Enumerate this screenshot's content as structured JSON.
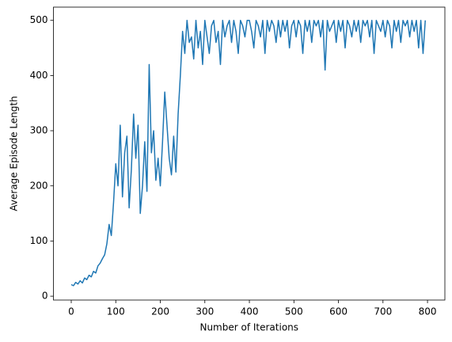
{
  "chart_data": {
    "type": "line",
    "xlabel": "Number of Iterations",
    "ylabel": "Average Episode Length",
    "x": [
      0,
      5,
      10,
      15,
      20,
      25,
      30,
      35,
      40,
      45,
      50,
      55,
      60,
      65,
      70,
      75,
      80,
      85,
      90,
      95,
      100,
      105,
      110,
      115,
      120,
      125,
      130,
      135,
      140,
      145,
      150,
      155,
      160,
      165,
      170,
      175,
      180,
      185,
      190,
      195,
      200,
      205,
      210,
      215,
      220,
      225,
      230,
      235,
      240,
      245,
      250,
      255,
      260,
      265,
      270,
      275,
      280,
      285,
      290,
      295,
      300,
      305,
      310,
      315,
      320,
      325,
      330,
      335,
      340,
      345,
      350,
      355,
      360,
      365,
      370,
      375,
      380,
      385,
      390,
      395,
      400,
      405,
      410,
      415,
      420,
      425,
      430,
      435,
      440,
      445,
      450,
      455,
      460,
      465,
      470,
      475,
      480,
      485,
      490,
      495,
      500,
      505,
      510,
      515,
      520,
      525,
      530,
      535,
      540,
      545,
      550,
      555,
      560,
      565,
      570,
      575,
      580,
      585,
      590,
      595,
      600,
      605,
      610,
      615,
      620,
      625,
      630,
      635,
      640,
      645,
      650,
      655,
      660,
      665,
      670,
      675,
      680,
      685,
      690,
      695,
      700,
      705,
      710,
      715,
      720,
      725,
      730,
      735,
      740,
      745,
      750,
      755,
      760,
      765,
      770,
      775,
      780,
      785,
      790,
      795
    ],
    "series": [
      {
        "name": "Average Episode Length",
        "color": "#1f77b4",
        "values": [
          21,
          19,
          25,
          22,
          28,
          24,
          33,
          30,
          38,
          35,
          45,
          42,
          55,
          60,
          68,
          75,
          95,
          130,
          110,
          170,
          240,
          200,
          310,
          180,
          260,
          290,
          160,
          230,
          330,
          250,
          310,
          150,
          200,
          280,
          190,
          420,
          260,
          300,
          210,
          250,
          200,
          280,
          370,
          310,
          250,
          220,
          290,
          225,
          330,
          400,
          480,
          440,
          500,
          460,
          470,
          430,
          500,
          450,
          480,
          420,
          500,
          470,
          440,
          490,
          500,
          460,
          480,
          420,
          500,
          470,
          490,
          500,
          460,
          500,
          480,
          440,
          500,
          490,
          470,
          500,
          500,
          480,
          450,
          500,
          490,
          470,
          500,
          440,
          500,
          480,
          500,
          490,
          460,
          500,
          470,
          500,
          480,
          500,
          450,
          490,
          500,
          470,
          500,
          490,
          440,
          500,
          480,
          500,
          460,
          500,
          490,
          500,
          470,
          500,
          410,
          500,
          480,
          490,
          500,
          460,
          500,
          480,
          500,
          450,
          500,
          490,
          470,
          500,
          480,
          500,
          460,
          500,
          490,
          500,
          470,
          500,
          440,
          500,
          490,
          480,
          500,
          470,
          500,
          490,
          450,
          500,
          480,
          500,
          460,
          500,
          490,
          500,
          470,
          500,
          480,
          500,
          450,
          500,
          440,
          500
        ]
      }
    ],
    "xlim": [
      -40,
      839
    ],
    "ylim": [
      -7,
      524
    ],
    "xticks": [
      0,
      100,
      200,
      300,
      400,
      500,
      600,
      700,
      800
    ],
    "yticks": [
      0,
      100,
      200,
      300,
      400,
      500
    ]
  }
}
